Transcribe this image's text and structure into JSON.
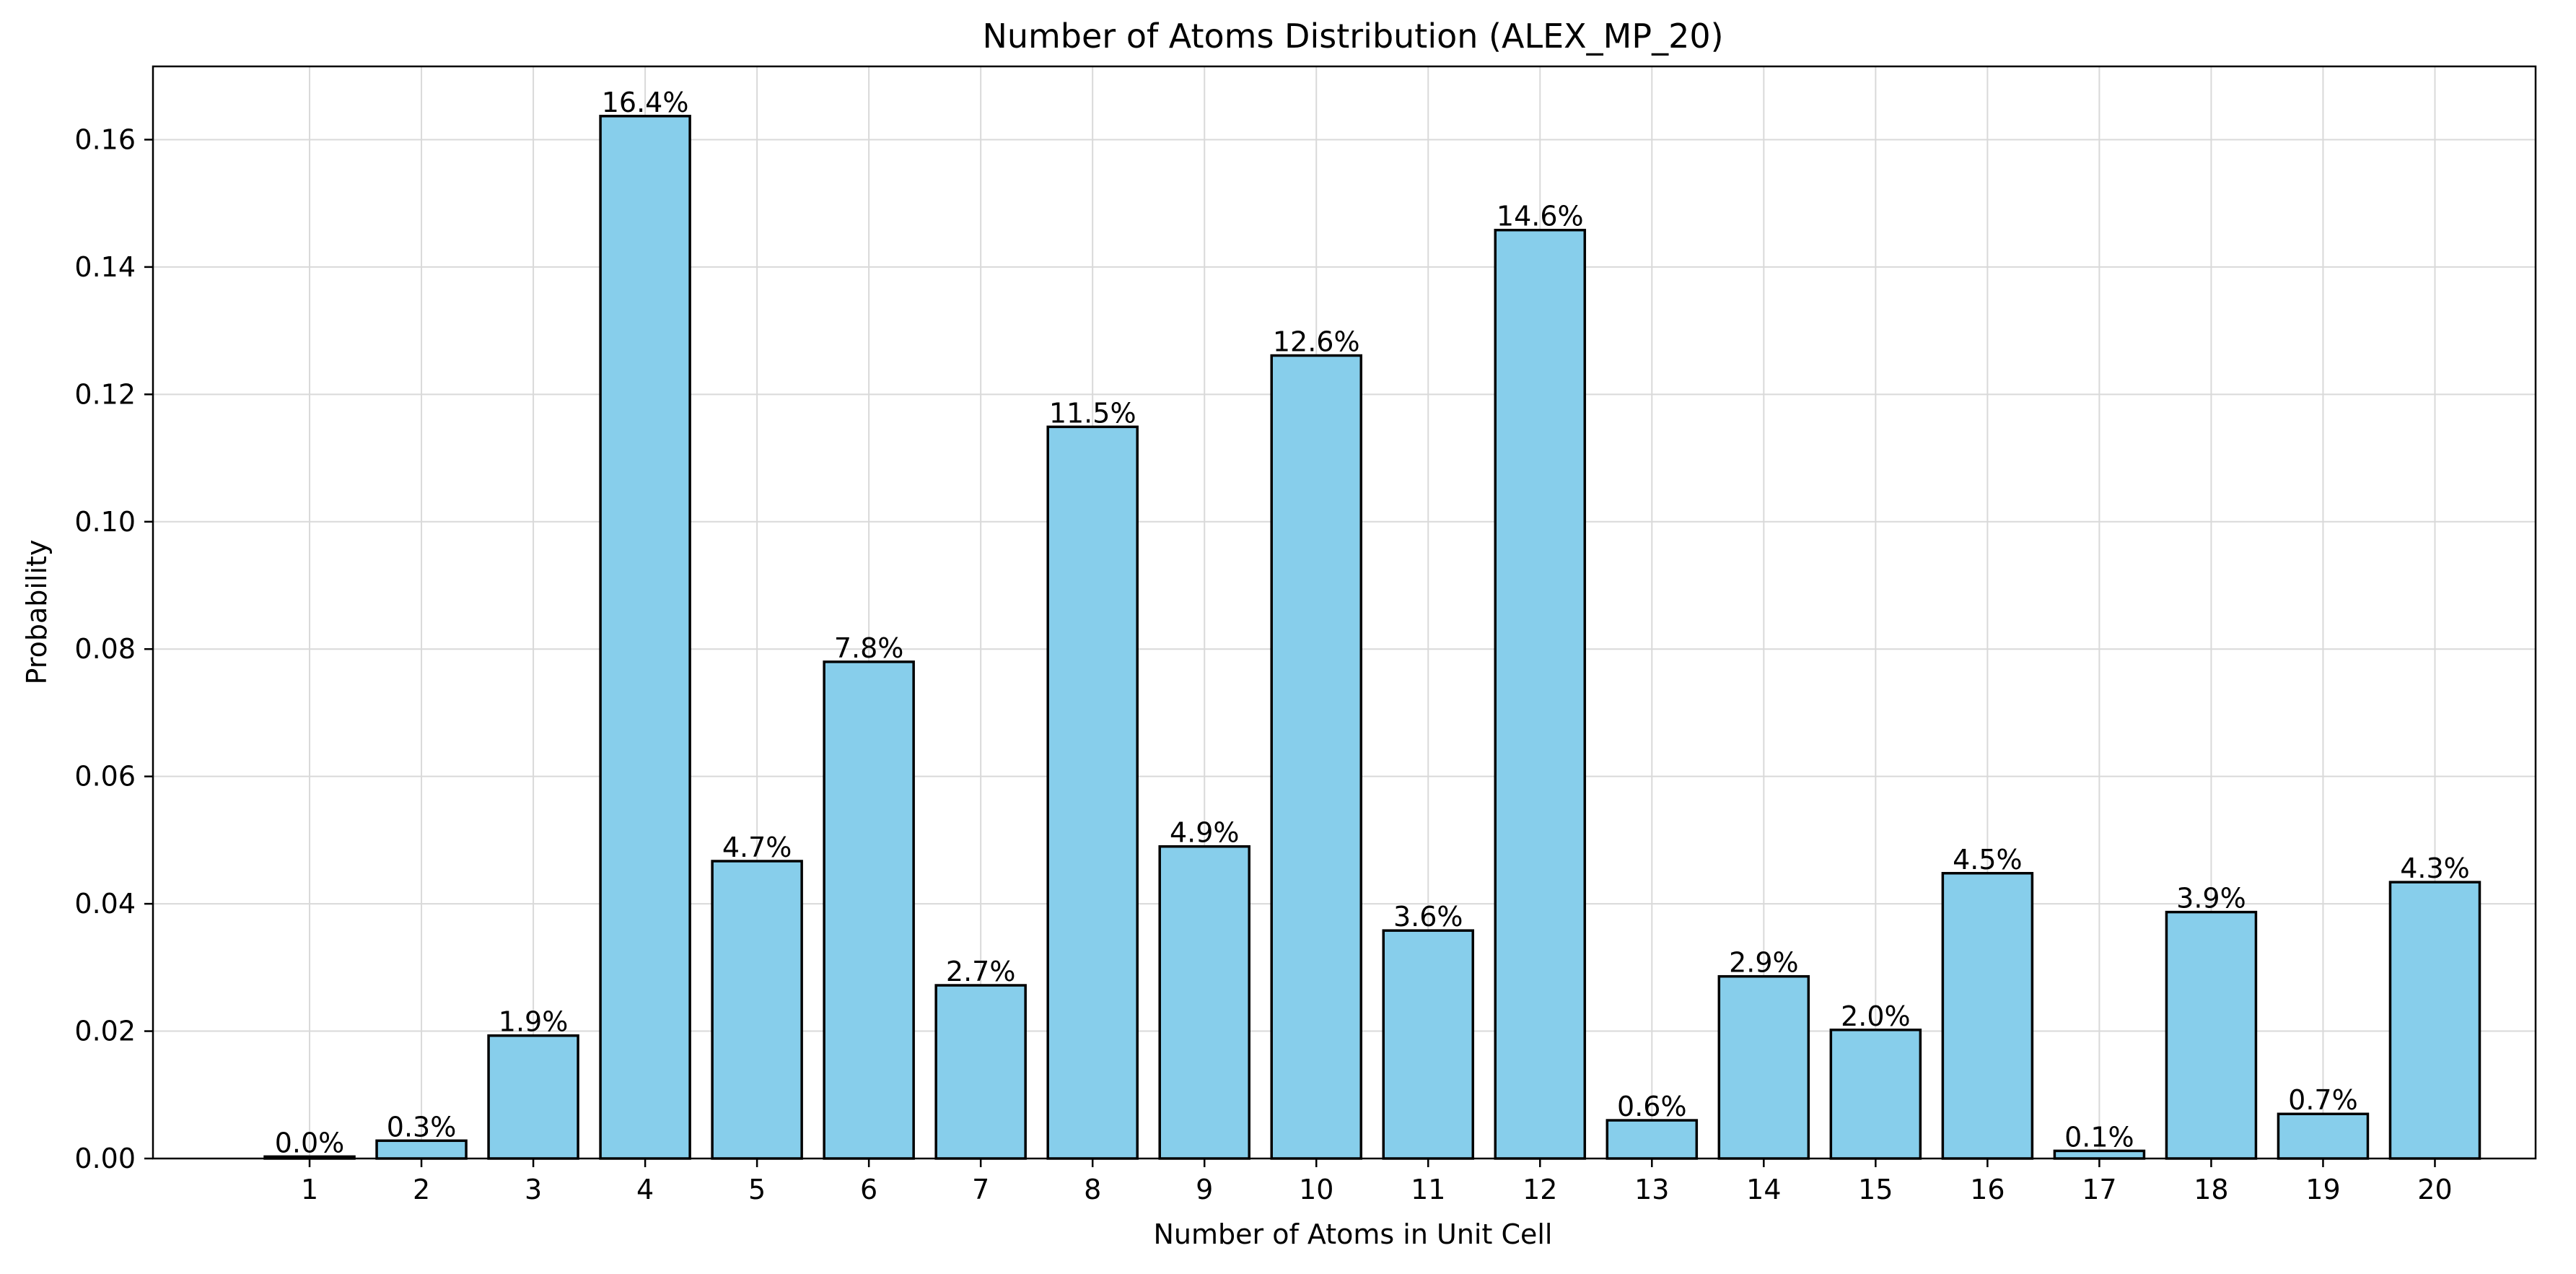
{
  "chart_data": {
    "type": "bar",
    "title": "Number of Atoms Distribution (ALEX_MP_20)",
    "xlabel": "Number of Atoms in Unit Cell",
    "ylabel": "Probability",
    "categories": [
      "1",
      "2",
      "3",
      "4",
      "5",
      "6",
      "7",
      "8",
      "9",
      "10",
      "11",
      "12",
      "13",
      "14",
      "15",
      "16",
      "17",
      "18",
      "19",
      "20"
    ],
    "values": [
      0.0003,
      0.0028,
      0.0193,
      0.1637,
      0.0467,
      0.078,
      0.0272,
      0.1149,
      0.049,
      0.1261,
      0.0358,
      0.1458,
      0.006,
      0.0286,
      0.0202,
      0.0448,
      0.0012,
      0.0387,
      0.007,
      0.0434
    ],
    "data_labels": [
      "0.0%",
      "0.3%",
      "1.9%",
      "16.4%",
      "4.7%",
      "7.8%",
      "2.7%",
      "11.5%",
      "4.9%",
      "12.6%",
      "3.6%",
      "14.6%",
      "0.6%",
      "2.9%",
      "2.0%",
      "4.5%",
      "0.1%",
      "3.9%",
      "0.7%",
      "4.3%"
    ],
    "ylim": [
      0,
      0.1715
    ],
    "xlim": [
      -0.4,
      20.9
    ],
    "yticks": [
      0.0,
      0.02,
      0.04,
      0.06,
      0.08,
      0.1,
      0.12,
      0.14,
      0.16
    ],
    "ytick_labels": [
      "0.00",
      "0.02",
      "0.04",
      "0.06",
      "0.08",
      "0.10",
      "0.12",
      "0.14",
      "0.16"
    ],
    "grid": true,
    "bar_color": "#87CEEB",
    "edge_color": "#000000"
  }
}
